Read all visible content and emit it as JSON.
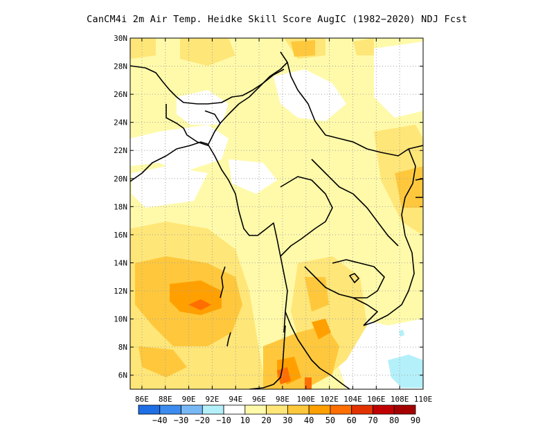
{
  "title": "CanCM4i  2m Air Temp. Heidke Skill Score AugIC (1982−2020) NDJ Fcst",
  "map": {
    "lat_labels": [
      "30N",
      "28N",
      "26N",
      "24N",
      "22N",
      "20N",
      "18N",
      "16N",
      "14N",
      "12N",
      "10N",
      "8N",
      "6N"
    ],
    "lon_labels": [
      "86E",
      "88E",
      "90E",
      "92E",
      "94E",
      "96E",
      "98E",
      "100E",
      "102E",
      "104E",
      "106E",
      "108E",
      "110E"
    ],
    "lat_range": [
      5,
      30
    ],
    "lon_range": [
      85,
      110
    ],
    "grid": true,
    "coastline_color": "#000000"
  },
  "colorbar": {
    "labels": [
      "−40",
      "−30",
      "−20",
      "−10",
      "10",
      "20",
      "30",
      "40",
      "50",
      "60",
      "70",
      "80",
      "90"
    ],
    "colors": [
      "#1e6ee6",
      "#3c8cf0",
      "#78b9f5",
      "#b4f0fa",
      "#ffffff",
      "#fffaaa",
      "#ffe678",
      "#ffc83c",
      "#ffa000",
      "#ff6e00",
      "#e13200",
      "#c00000",
      "#a50000"
    ]
  }
}
